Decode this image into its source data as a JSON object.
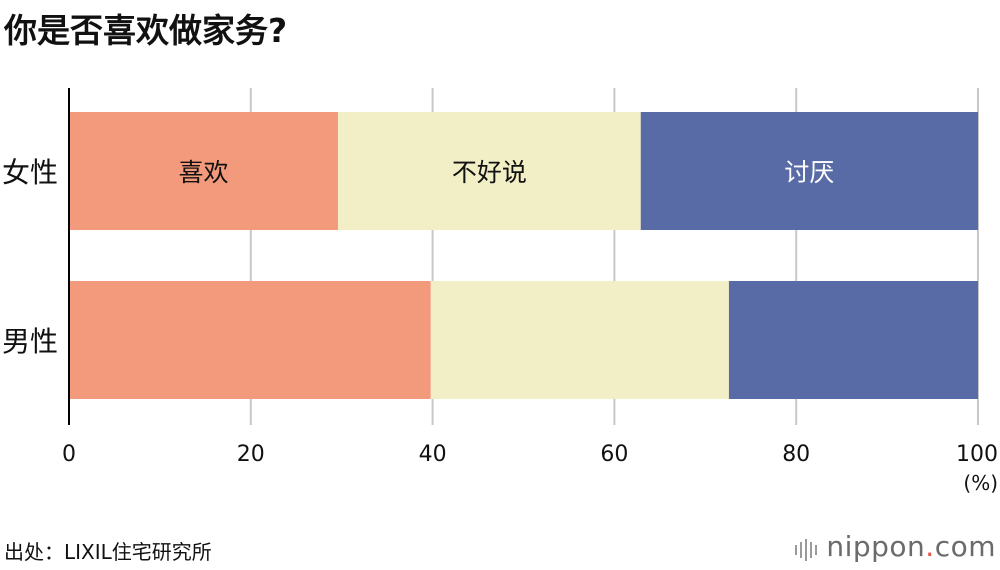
{
  "title": "你是否喜欢做家务?",
  "source": "出处：LIXIL住宅研究所",
  "brand": {
    "name": "nippon",
    "dot": ".",
    "suffix": "com"
  },
  "colors": {
    "like": "#f29a7b",
    "neutral": "#f2eec6",
    "dislike": "#586ba6",
    "grid": "#c8c8c8",
    "axis": "#000000"
  },
  "chart_data": {
    "type": "bar",
    "orientation": "horizontal",
    "stacked": true,
    "categories": [
      "女性",
      "男性"
    ],
    "series": [
      {
        "name": "喜欢",
        "values": [
          29.6,
          39.8
        ]
      },
      {
        "name": "不好说",
        "values": [
          33.3,
          32.8
        ]
      },
      {
        "name": "讨厌",
        "values": [
          37.1,
          27.4
        ]
      }
    ],
    "xlim": [
      0,
      100
    ],
    "xticks": [
      "0",
      "20",
      "40",
      "60",
      "80",
      "100"
    ],
    "xunit": "(%)",
    "grid": true
  }
}
